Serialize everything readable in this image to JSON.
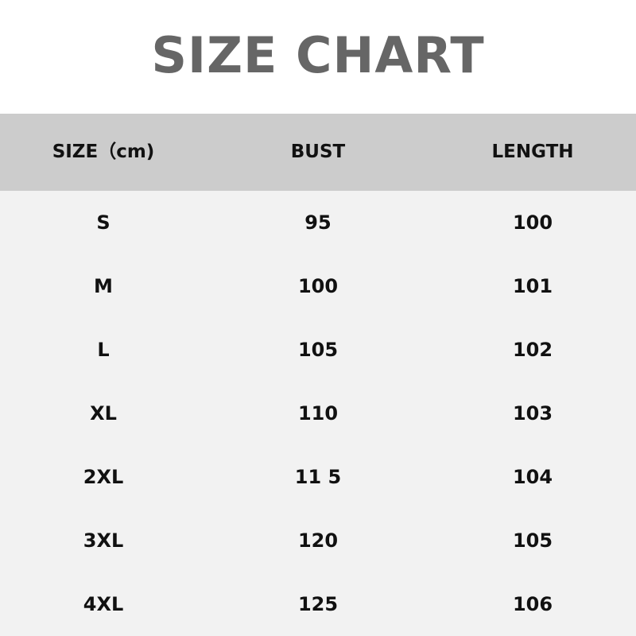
{
  "title": "SIZE CHART",
  "colors": {
    "title": "#666666",
    "header_bg": "#cccccc",
    "body_bg": "#f2f2f2"
  },
  "headers": [
    "SIZE（cm)",
    "BUST",
    "LENGTH"
  ],
  "rows": [
    [
      "S",
      "95",
      "100"
    ],
    [
      "M",
      "100",
      "101"
    ],
    [
      "L",
      "105",
      "102"
    ],
    [
      "XL",
      "110",
      "103"
    ],
    [
      "2XL",
      "11 5",
      "104"
    ],
    [
      "3XL",
      "120",
      "105"
    ],
    [
      "4XL",
      "125",
      "106"
    ]
  ]
}
